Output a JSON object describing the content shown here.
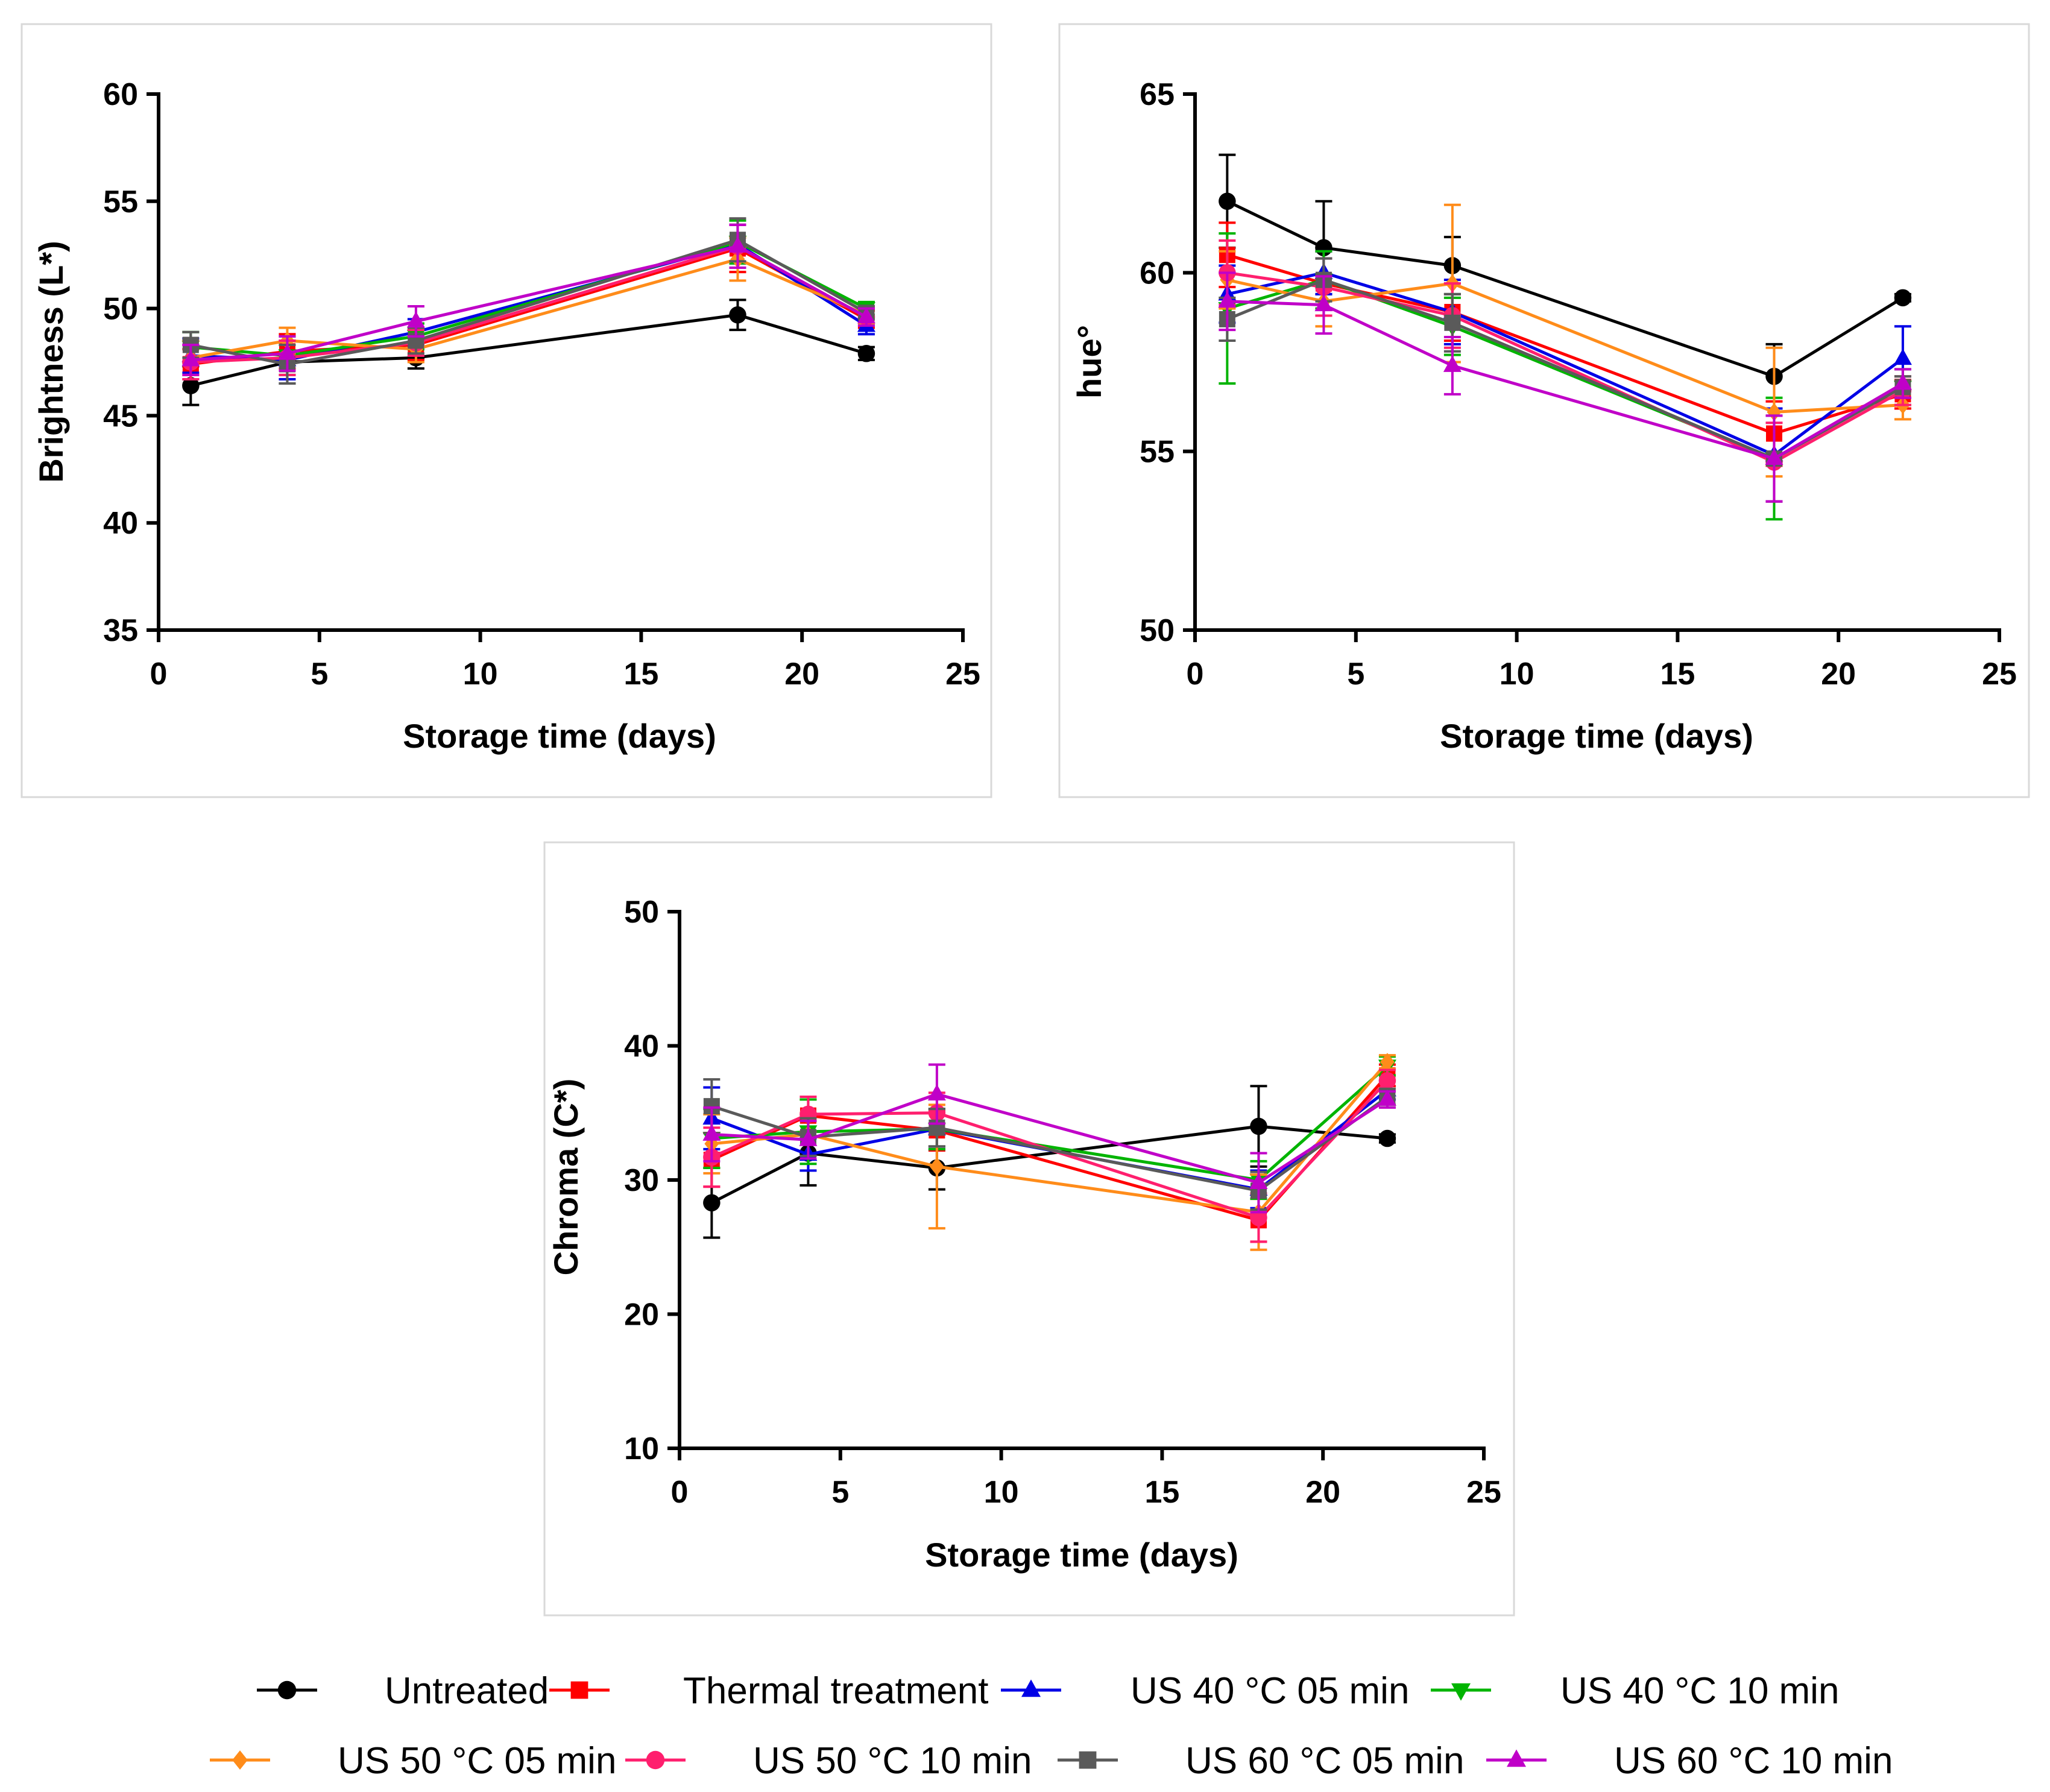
{
  "legend": [
    {
      "name": "Untreated",
      "color": "#000000",
      "marker": "circle"
    },
    {
      "name": "Thermal treatment",
      "color": "#ff0000",
      "marker": "square"
    },
    {
      "name": "US 40 °C 05 min",
      "color": "#0000e6",
      "marker": "triangle-up"
    },
    {
      "name": "US 40 °C 10 min",
      "color": "#00b400",
      "marker": "triangle-down"
    },
    {
      "name": "US 50 °C 05 min",
      "color": "#ff8c1a",
      "marker": "diamond"
    },
    {
      "name": "US 50 °C 10 min",
      "color": "#ff1f6e",
      "marker": "circle"
    },
    {
      "name": "US 60 °C 05 min",
      "color": "#5a5a5a",
      "marker": "square"
    },
    {
      "name": "US 60 °C 10 min",
      "color": "#c000c8",
      "marker": "triangle-up"
    }
  ],
  "chart_data": [
    {
      "type": "line",
      "title": "",
      "xlabel": "Storage time (days)",
      "ylabel": "Brightness (L*)",
      "xlim": [
        0,
        25
      ],
      "ylim": [
        35,
        60
      ],
      "xticks": [
        0,
        5,
        10,
        15,
        20,
        25
      ],
      "yticks": [
        35,
        40,
        45,
        50,
        55,
        60
      ],
      "x": [
        1,
        4,
        8,
        18,
        22
      ],
      "series": [
        {
          "name": "Untreated",
          "values": [
            46.4,
            47.5,
            47.7,
            49.7,
            47.9
          ],
          "errors": [
            0.9,
            1.0,
            0.5,
            0.7,
            0.3
          ]
        },
        {
          "name": "Thermal treatment",
          "values": [
            47.4,
            48.0,
            48.3,
            52.8,
            49.5
          ],
          "errors": [
            0.7,
            0.8,
            0.7,
            1.1,
            0.4
          ]
        },
        {
          "name": "US 40 °C 05 min",
          "values": [
            47.8,
            47.6,
            48.9,
            53.0,
            49.2
          ],
          "errors": [
            0.8,
            0.9,
            0.6,
            0.9,
            0.4
          ]
        },
        {
          "name": "US 40 °C 10 min",
          "values": [
            48.2,
            47.8,
            48.7,
            53.1,
            50.0
          ],
          "errors": [
            0.7,
            0.9,
            0.6,
            1.0,
            0.3
          ]
        },
        {
          "name": "US 50 °C 05 min",
          "values": [
            47.7,
            48.5,
            48.1,
            52.3,
            49.7
          ],
          "errors": [
            0.8,
            0.6,
            0.6,
            1.0,
            0.4
          ]
        },
        {
          "name": "US 50 °C 10 min",
          "values": [
            47.5,
            47.7,
            48.4,
            52.9,
            49.6
          ],
          "errors": [
            0.8,
            0.8,
            0.6,
            1.0,
            0.4
          ]
        },
        {
          "name": "US 60 °C 05 min",
          "values": [
            48.3,
            47.4,
            48.5,
            53.2,
            49.8
          ],
          "errors": [
            0.6,
            0.9,
            0.6,
            1.0,
            0.3
          ]
        },
        {
          "name": "US 60 °C 10 min",
          "values": [
            47.6,
            47.9,
            49.4,
            52.9,
            49.6
          ],
          "errors": [
            0.7,
            0.8,
            0.7,
            1.0,
            0.4
          ]
        }
      ]
    },
    {
      "type": "line",
      "title": "",
      "xlabel": "Storage time (days)",
      "ylabel": "hue°",
      "xlim": [
        0,
        25
      ],
      "ylim": [
        50,
        65
      ],
      "xticks": [
        0,
        5,
        10,
        15,
        20,
        25
      ],
      "yticks": [
        50,
        55,
        60,
        65
      ],
      "x": [
        1,
        4,
        8,
        18,
        22
      ],
      "series": [
        {
          "name": "Untreated",
          "values": [
            62.0,
            60.7,
            60.2,
            57.1,
            59.3
          ],
          "errors": [
            1.3,
            1.3,
            0.8,
            0.9,
            0.1
          ]
        },
        {
          "name": "Thermal treatment",
          "values": [
            60.5,
            59.7,
            58.9,
            55.5,
            56.6
          ],
          "errors": [
            0.9,
            0.9,
            0.8,
            0.9,
            0.4
          ]
        },
        {
          "name": "US 40 °C 05 min",
          "values": [
            59.4,
            60.0,
            58.9,
            54.9,
            57.6
          ],
          "errors": [
            0.8,
            0.6,
            0.9,
            1.3,
            0.9
          ]
        },
        {
          "name": "US 40 °C 10 min",
          "values": [
            59.0,
            59.8,
            58.5,
            54.8,
            56.8
          ],
          "errors": [
            2.1,
            0.8,
            0.8,
            1.7,
            0.5
          ]
        },
        {
          "name": "US 50 °C 05 min",
          "values": [
            59.8,
            59.2,
            59.7,
            56.1,
            56.3
          ],
          "errors": [
            0.8,
            0.7,
            2.2,
            1.8,
            0.4
          ]
        },
        {
          "name": "US 50 °C 10 min",
          "values": [
            60.0,
            59.6,
            58.8,
            54.7,
            56.7
          ],
          "errors": [
            0.9,
            0.8,
            0.9,
            1.1,
            0.4
          ]
        },
        {
          "name": "US 60 °C 05 min",
          "values": [
            58.7,
            59.8,
            58.6,
            54.8,
            56.8
          ],
          "errors": [
            0.6,
            0.6,
            0.8,
            1.2,
            0.3
          ]
        },
        {
          "name": "US 60 °C 10 min",
          "values": [
            59.2,
            59.1,
            57.4,
            54.8,
            56.9
          ],
          "errors": [
            0.8,
            0.8,
            0.8,
            1.2,
            0.4
          ]
        }
      ]
    },
    {
      "type": "line",
      "title": "",
      "xlabel": "Storage time (days)",
      "ylabel": "Chroma (C*)",
      "xlim": [
        0,
        25
      ],
      "ylim": [
        10,
        50
      ],
      "xticks": [
        0,
        5,
        10,
        15,
        20,
        25
      ],
      "yticks": [
        10,
        20,
        30,
        40,
        50
      ],
      "x": [
        1,
        4,
        8,
        18,
        22
      ],
      "series": [
        {
          "name": "Untreated",
          "values": [
            28.3,
            32.0,
            30.9,
            34.0,
            33.1
          ],
          "errors": [
            2.6,
            2.4,
            1.6,
            3.0,
            0.3
          ]
        },
        {
          "name": "Thermal treatment",
          "values": [
            31.5,
            34.8,
            33.7,
            27.0,
            37.8
          ],
          "errors": [
            2.0,
            1.2,
            1.5,
            1.6,
            0.8
          ]
        },
        {
          "name": "US 40 °C 05 min",
          "values": [
            34.6,
            31.9,
            33.8,
            29.3,
            36.7
          ],
          "errors": [
            2.3,
            1.2,
            1.5,
            1.4,
            0.7
          ]
        },
        {
          "name": "US 40 °C 10 min",
          "values": [
            33.1,
            33.6,
            33.8,
            30.0,
            38.5
          ],
          "errors": [
            2.2,
            2.4,
            1.5,
            1.4,
            0.7
          ]
        },
        {
          "name": "US 50 °C 05 min",
          "values": [
            32.7,
            33.4,
            31.0,
            27.6,
            38.8
          ],
          "errors": [
            2.2,
            1.6,
            4.6,
            2.8,
            0.5
          ]
        },
        {
          "name": "US 50 °C 10 min",
          "values": [
            31.7,
            34.9,
            35.0,
            27.2,
            37.4
          ],
          "errors": [
            2.2,
            1.3,
            1.5,
            1.8,
            0.8
          ]
        },
        {
          "name": "US 60 °C 05 min",
          "values": [
            35.5,
            33.2,
            33.9,
            29.2,
            36.2
          ],
          "errors": [
            2.0,
            1.4,
            1.4,
            1.4,
            0.6
          ]
        },
        {
          "name": "US 60 °C 10 min",
          "values": [
            33.4,
            33.0,
            36.4,
            29.8,
            36.0
          ],
          "errors": [
            2.0,
            1.4,
            2.2,
            2.2,
            0.6
          ]
        }
      ]
    }
  ]
}
